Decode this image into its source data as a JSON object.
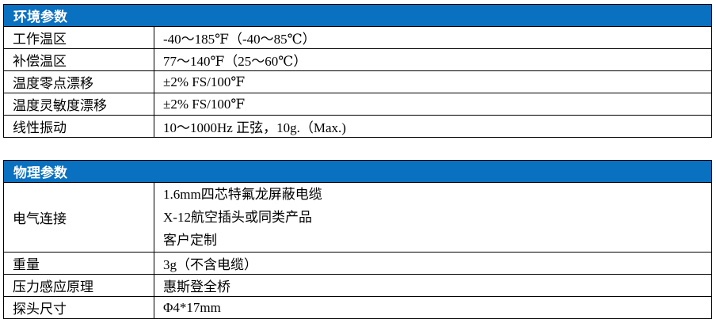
{
  "colors": {
    "header_bg": "#0a70c0",
    "header_text": "#ffffff",
    "border": "#000000",
    "body_text": "#000000",
    "page_bg": "#ffffff"
  },
  "tables": [
    {
      "title": "环境参数",
      "rows": [
        {
          "label": "工作温区",
          "value": [
            "-40～185℉（-40～85℃）"
          ]
        },
        {
          "label": "补偿温区",
          "value": [
            "77～140℉（25～60℃）"
          ]
        },
        {
          "label": "温度零点漂移",
          "value": [
            "±2% FS/100℉"
          ]
        },
        {
          "label": "温度灵敏度漂移",
          "value": [
            "±2% FS/100℉"
          ]
        },
        {
          "label": "线性振动",
          "value": [
            "10～1000Hz 正弦，10g.（Max.)"
          ]
        }
      ]
    },
    {
      "title": "物理参数",
      "rows": [
        {
          "label": "电气连接",
          "value": [
            "1.6mm四芯特氟龙屏蔽电缆",
            "X-12航空插头或同类产品",
            "客户定制"
          ]
        },
        {
          "label": "重量",
          "value": [
            "3g（不含电缆）"
          ]
        },
        {
          "label": "压力感应原理",
          "value": [
            "惠斯登全桥"
          ]
        },
        {
          "label": "探头尺寸",
          "value": [
            "Φ4*17mm"
          ]
        }
      ]
    }
  ]
}
